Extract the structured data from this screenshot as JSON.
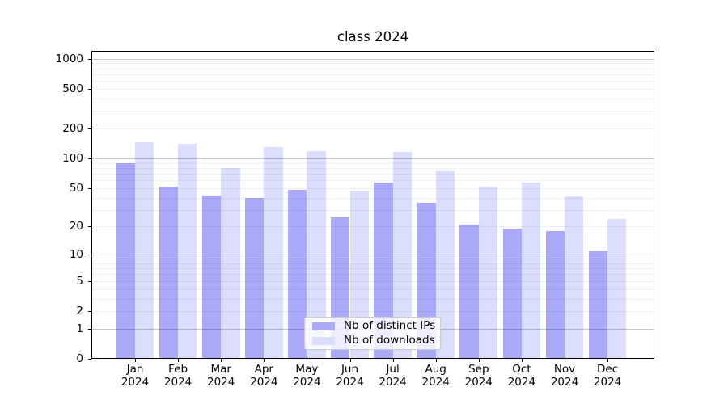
{
  "chart_data": {
    "type": "bar",
    "title": "class 2024",
    "categories": [
      "Jan 2024",
      "Feb 2024",
      "Mar 2024",
      "Apr 2024",
      "May 2024",
      "Jun 2024",
      "Jul 2024",
      "Aug 2024",
      "Sep 2024",
      "Oct 2024",
      "Nov 2024",
      "Dec 2024"
    ],
    "series": [
      {
        "name": "Nb of distinct IPs",
        "color": "#a9a9f5",
        "fill": "rgba(10,10,232,0.35)",
        "values": [
          90,
          52,
          42,
          40,
          48,
          25,
          57,
          35,
          21,
          19,
          18,
          11
        ]
      },
      {
        "name": "Nb of downloads",
        "color": "#dcdcfb",
        "fill": "rgba(10,10,232,0.14)",
        "values": [
          146,
          140,
          80,
          130,
          118,
          47,
          116,
          74,
          52,
          57,
          41,
          24
        ]
      }
    ],
    "xlabel": "",
    "ylabel": "",
    "yscale": "log1p",
    "yticks": [
      0,
      1,
      2,
      5,
      10,
      20,
      50,
      100,
      200,
      500,
      1000
    ],
    "ylim": [
      0,
      1200
    ],
    "grid": true,
    "legend_position": "lower center"
  },
  "colors": {
    "grid_major": "#c8c8c8",
    "grid_minor": "#efefef",
    "spine": "#000000",
    "background": "#ffffff"
  }
}
